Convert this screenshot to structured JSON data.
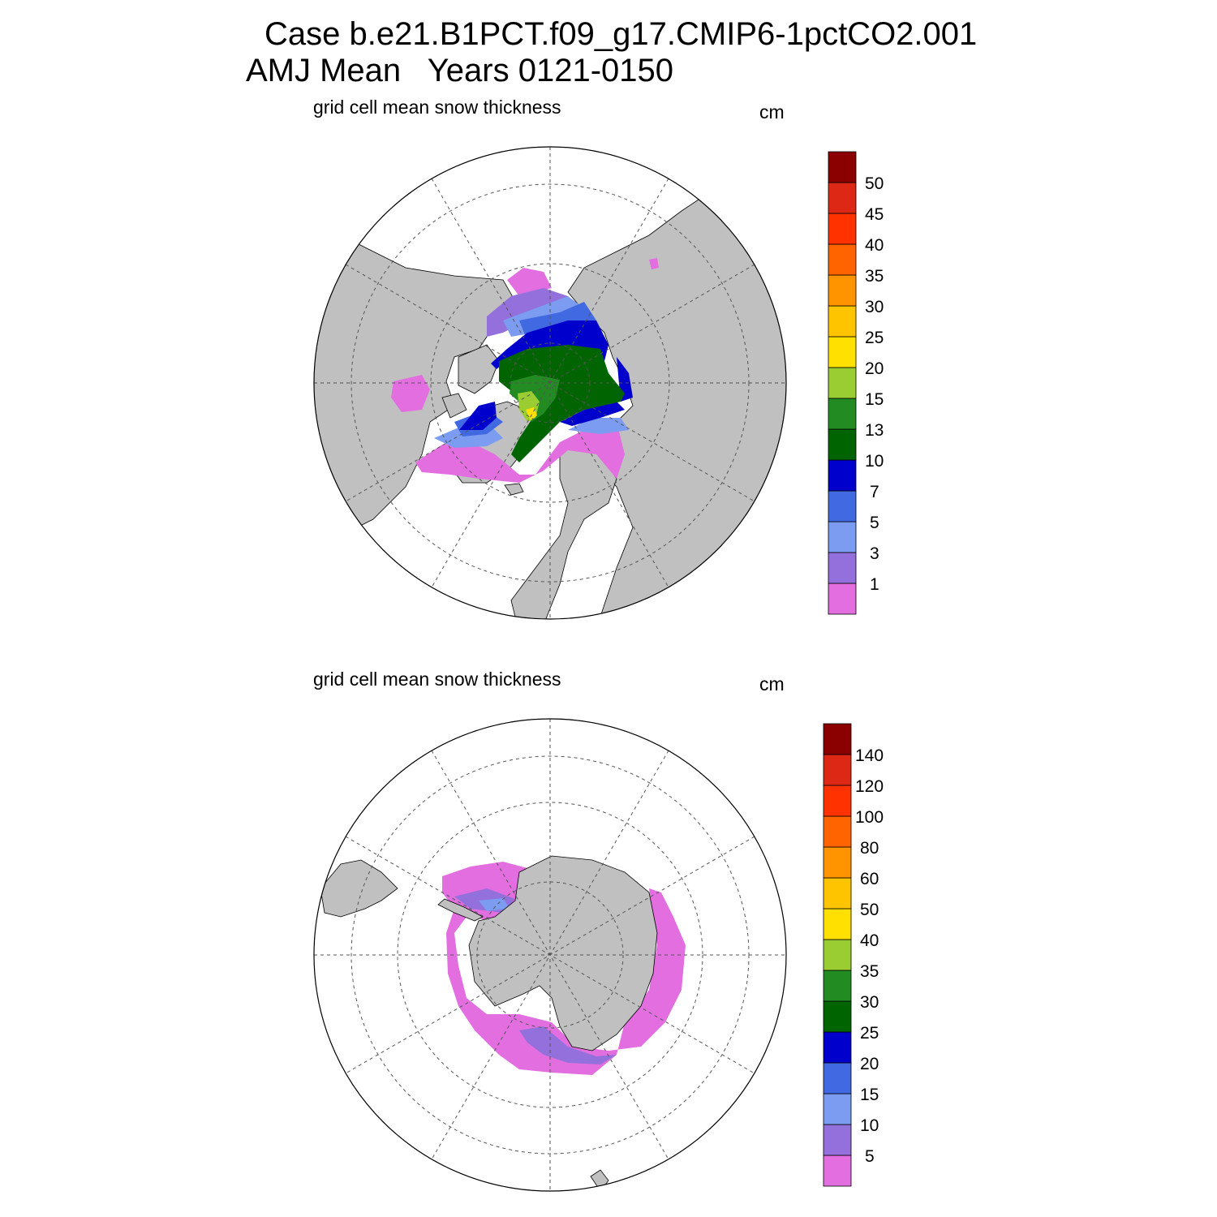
{
  "title_line1": "Case b.e21.B1PCT.f09_g17.CMIP6-1pctCO2.001",
  "title_line2": "AMJ Mean   Years 0121-0150",
  "panels": [
    {
      "id": "north",
      "hemisphere": "Northern",
      "subtitle": "grid cell mean snow thickness",
      "units": "cm",
      "colorbar": {
        "labels": [
          "1",
          "3",
          "5",
          "7",
          "10",
          "13",
          "15",
          "20",
          "25",
          "30",
          "35",
          "40",
          "45",
          "50"
        ],
        "colors": [
          "#e36ee0",
          "#9370db",
          "#7b9cf0",
          "#4169e1",
          "#0000cd",
          "#006400",
          "#228b22",
          "#9acd32",
          "#ffe000",
          "#ffc400",
          "#ff9400",
          "#ff6400",
          "#ff3200",
          "#dc2814",
          "#8b0000"
        ]
      }
    },
    {
      "id": "south",
      "hemisphere": "Southern",
      "subtitle": "grid cell mean snow thickness",
      "units": "cm",
      "colorbar": {
        "labels": [
          "5",
          "10",
          "15",
          "20",
          "25",
          "30",
          "35",
          "40",
          "50",
          "60",
          "80",
          "100",
          "120",
          "140"
        ],
        "colors": [
          "#e36ee0",
          "#9370db",
          "#7b9cf0",
          "#4169e1",
          "#0000cd",
          "#006400",
          "#228b22",
          "#9acd32",
          "#ffe000",
          "#ffc400",
          "#ff9400",
          "#ff6400",
          "#ff3200",
          "#dc2814",
          "#8b0000"
        ]
      }
    }
  ],
  "colors": {
    "land": "#c0c0c0",
    "ocean": "#ffffff",
    "grid": "#555555"
  }
}
